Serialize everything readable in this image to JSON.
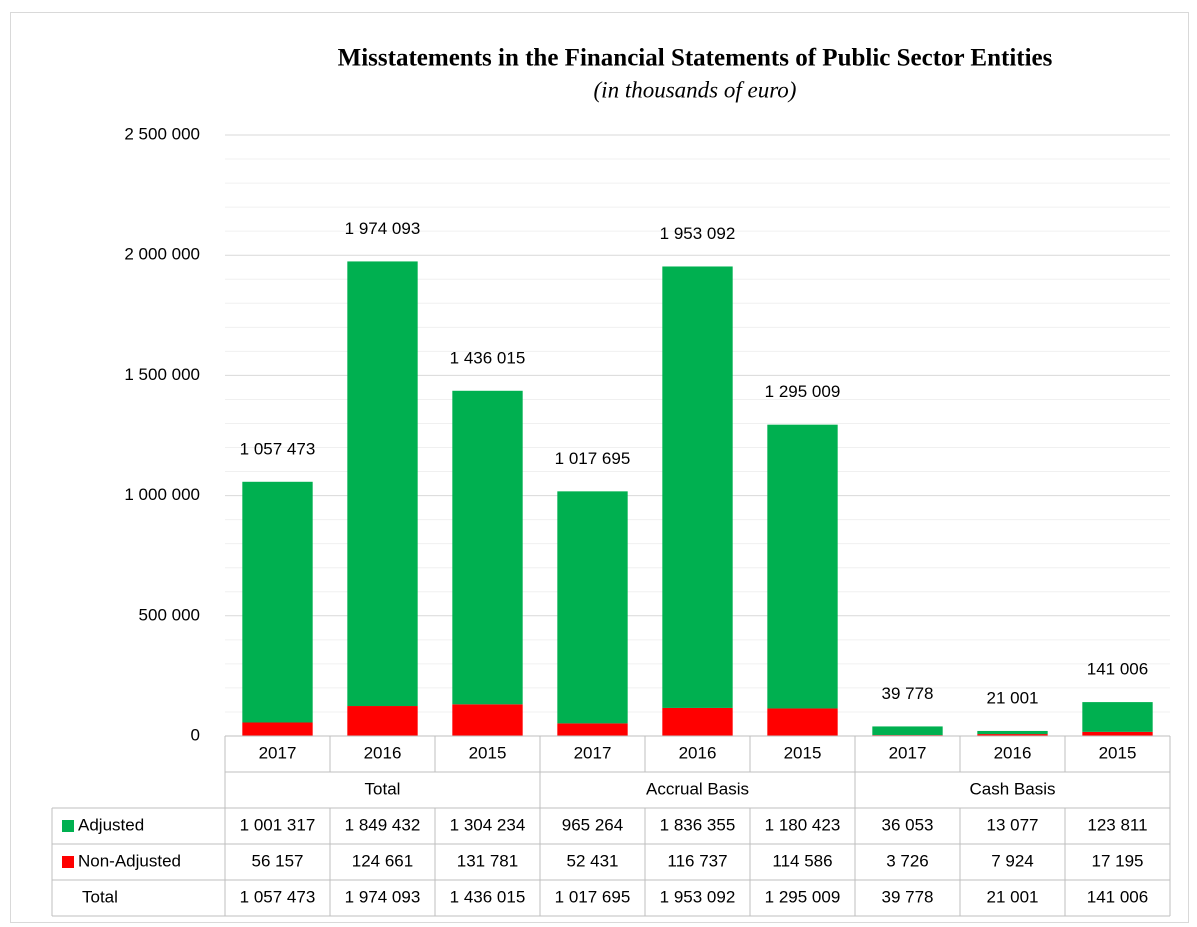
{
  "chart_data": {
    "type": "stacked_bar",
    "title": "Misstatements in the Financial Statements of Public Sector Entities",
    "subtitle": "(in thousands of euro)",
    "categories": [
      "2017",
      "2016",
      "2015",
      "2017",
      "2016",
      "2015",
      "2017",
      "2016",
      "2015"
    ],
    "groups": [
      "Total",
      "Accrual Basis",
      "Cash Basis"
    ],
    "series": [
      {
        "name": "Adjusted",
        "color": "#00b050",
        "values": [
          1001317,
          1849432,
          1304234,
          965264,
          1836355,
          1180423,
          36053,
          13077,
          123811
        ],
        "value_labels": [
          "1 001 317",
          "1 849 432",
          "1 304 234",
          "965 264",
          "1 836 355",
          "1 180 423",
          "36 053",
          "13 077",
          "123 811"
        ]
      },
      {
        "name": "Non-Adjusted",
        "color": "#ff0000",
        "values": [
          56157,
          124661,
          131781,
          52431,
          116737,
          114586,
          3726,
          7924,
          17195
        ],
        "value_labels": [
          "56 157",
          "124 661",
          "131 781",
          "52 431",
          "116 737",
          "114 586",
          "3 726",
          "7 924",
          "17 195"
        ]
      }
    ],
    "totals": {
      "name": "Total",
      "values": [
        1057473,
        1974093,
        1436015,
        1017695,
        1953092,
        1295009,
        39778,
        21001,
        141006
      ],
      "value_labels": [
        "1 057 473",
        "1 974 093",
        "1 436 015",
        "1 017 695",
        "1 953 092",
        "1 295 009",
        "39 778",
        "21 001",
        "141 006"
      ]
    },
    "ylim": [
      0,
      2500000
    ],
    "yticks": [
      0,
      {
        "value": 500000,
        "label": "500 000"
      },
      {
        "value": 1000000,
        "label": "1 000 000"
      },
      {
        "value": 1500000,
        "label": "1 500 000"
      },
      {
        "value": 2000000,
        "label": "2 000 000"
      },
      {
        "value": 2500000,
        "label": "2 500 000"
      }
    ],
    "minor_yticks": [
      100000,
      200000,
      300000,
      400000,
      600000,
      700000,
      800000,
      900000,
      1100000,
      1200000,
      1300000,
      1400000,
      1600000,
      1700000,
      1800000,
      1900000,
      2100000,
      2200000,
      2300000,
      2400000
    ],
    "grid": true,
    "data_table": true
  }
}
